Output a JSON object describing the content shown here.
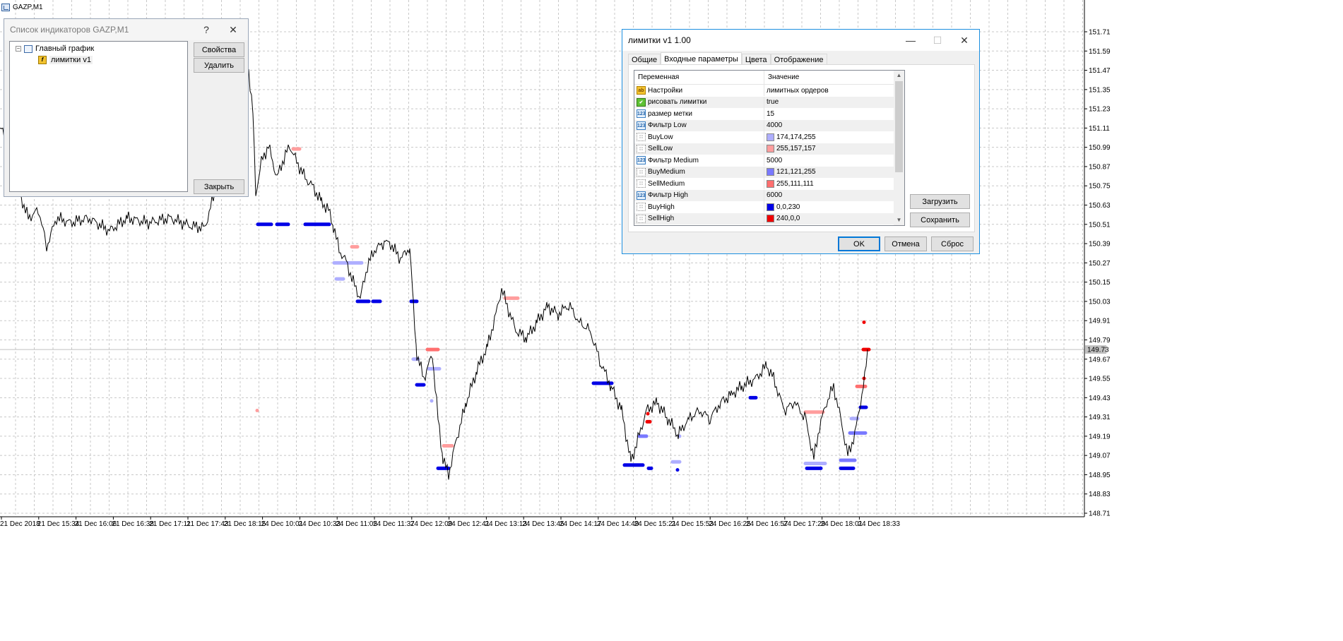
{
  "window_title": "GAZP,M1",
  "price_axis": {
    "ticks": [
      "151.71",
      "151.59",
      "151.47",
      "151.35",
      "151.23",
      "151.11",
      "150.99",
      "150.87",
      "150.75",
      "150.63",
      "150.51",
      "150.39",
      "150.27",
      "150.15",
      "150.03",
      "149.91",
      "149.79",
      "149.67",
      "149.55",
      "149.43",
      "149.31",
      "149.19",
      "149.07",
      "148.95",
      "148.83",
      "148.71"
    ],
    "current_price": "149.73",
    "current_price_bg": "#c0c0c0"
  },
  "time_axis": {
    "ticks": [
      "21 Dec 2018",
      "21 Dec 15:34",
      "21 Dec 16:06",
      "21 Dec 16:38",
      "21 Dec 17:11",
      "21 Dec 17:43",
      "21 Dec 18:15",
      "24 Dec 10:01",
      "24 Dec 10:33",
      "24 Dec 11:05",
      "24 Dec 11:37",
      "24 Dec 12:09",
      "24 Dec 12:41",
      "24 Dec 13:13",
      "24 Dec 13:45",
      "24 Dec 14:17",
      "24 Dec 14:49",
      "24 Dec 15:21",
      "24 Dec 15:53",
      "24 Dec 16:25",
      "24 Dec 16:57",
      "24 Dec 17:29",
      "24 Dec 18:01",
      "24 Dec 18:33"
    ]
  },
  "colors": {
    "grid": "#c8c8c8",
    "price_line": "#000000",
    "buy_low": "#aeaeff",
    "sell_low": "#ff9d9d",
    "buy_medium": "#7979ff",
    "sell_medium": "#ff6f6f",
    "buy_high": "#0000e6",
    "sell_high": "#f00000"
  },
  "indicator_list": {
    "title": "Список индикаторов GAZP,M1",
    "help": "?",
    "close": "✕",
    "tree": {
      "root": "Главный график",
      "child": "лимитки v1"
    },
    "buttons": {
      "properties": "Свойства",
      "delete": "Удалить",
      "close": "Закрыть"
    }
  },
  "params": {
    "title": "лимитки v1 1.00",
    "min": "—",
    "max": "☐",
    "close": "✕",
    "tabs": [
      "Общие",
      "Входные параметры",
      "Цвета",
      "Отображение"
    ],
    "active_tab": "Входные параметры",
    "col_variable": "Переменная",
    "col_value": "Значение",
    "rows": [
      {
        "icon": "ab",
        "name": "Настройки",
        "value": "лимитных ордеров"
      },
      {
        "icon": "bool",
        "name": "рисовать лимитки",
        "value": "true"
      },
      {
        "icon": "num",
        "name": "размер метки",
        "value": "15"
      },
      {
        "icon": "num",
        "name": "Фильтр Low",
        "value": "4000"
      },
      {
        "icon": "clr",
        "name": "BuyLow",
        "value": "174,174,255",
        "swatch": "#aeaeff"
      },
      {
        "icon": "clr",
        "name": "SellLow",
        "value": "255,157,157",
        "swatch": "#ff9d9d"
      },
      {
        "icon": "num",
        "name": "Фильтр Medium",
        "value": "5000"
      },
      {
        "icon": "clr",
        "name": "BuyMedium",
        "value": "121,121,255",
        "swatch": "#7979ff"
      },
      {
        "icon": "clr",
        "name": "SellMedium",
        "value": "255,111,111",
        "swatch": "#ff6f6f"
      },
      {
        "icon": "num",
        "name": "Фильтр High",
        "value": "6000"
      },
      {
        "icon": "clr",
        "name": "BuyHigh",
        "value": "0,0,230",
        "swatch": "#0000e6"
      },
      {
        "icon": "clr",
        "name": "SellHigh",
        "value": "240,0,0",
        "swatch": "#f00000"
      }
    ],
    "buttons": {
      "load": "Загрузить",
      "save": "Сохранить",
      "ok": "OK",
      "cancel": "Отмена",
      "reset": "Сброс"
    }
  }
}
